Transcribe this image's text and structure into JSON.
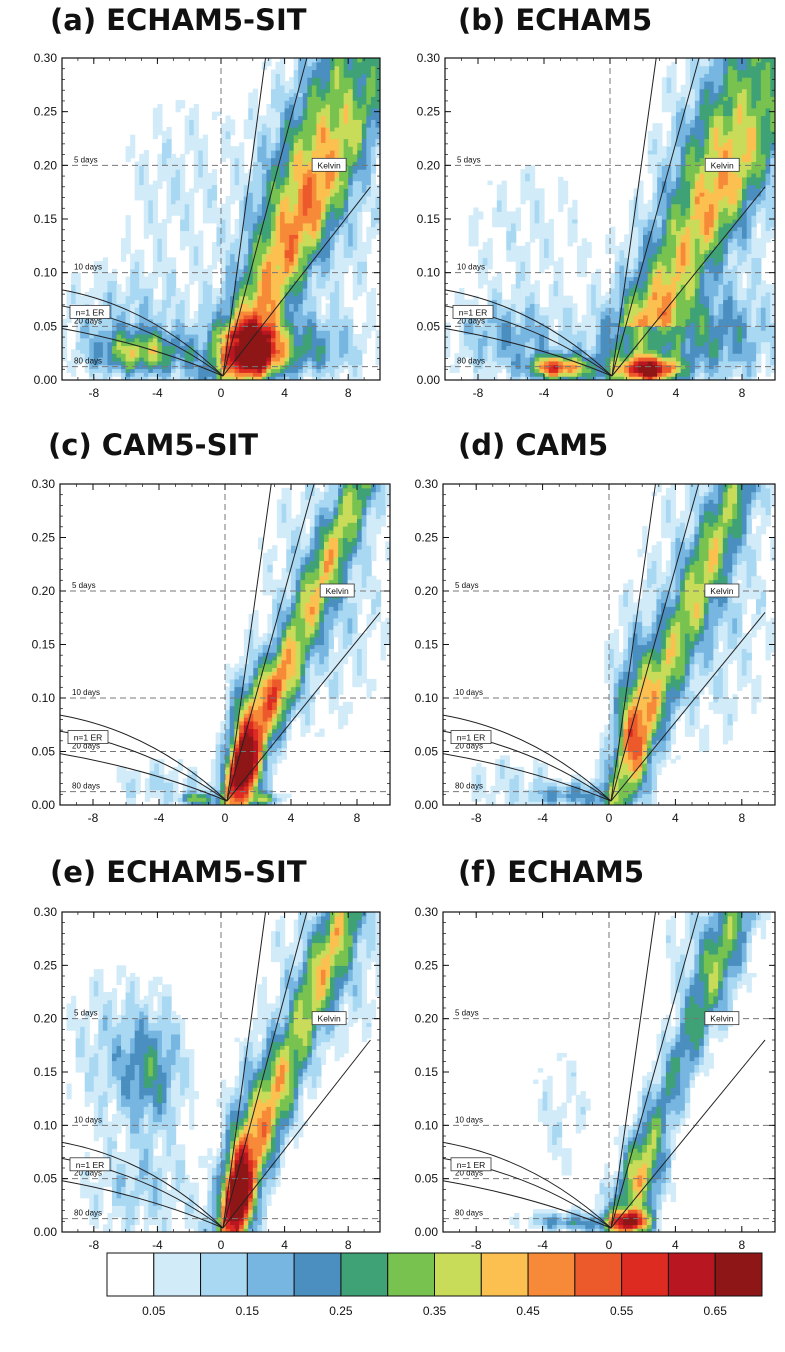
{
  "chart_data": {
    "panels": [
      {
        "id": "a",
        "title": "(a) ECHAM5-SIT",
        "pattern": "a"
      },
      {
        "id": "b",
        "title": "(b) ECHAM5",
        "pattern": "b"
      },
      {
        "id": "c",
        "title": "(c) CAM5-SIT",
        "pattern": "c"
      },
      {
        "id": "d",
        "title": "(d) CAM5",
        "pattern": "d"
      },
      {
        "id": "e",
        "title": "(e) ECHAM5-SIT",
        "pattern": "e"
      },
      {
        "id": "f",
        "title": "(f) ECHAM5",
        "pattern": "f"
      }
    ],
    "type": "heatmap",
    "x_ticks": [
      "-8",
      "-4",
      "0",
      "4",
      "8"
    ],
    "x_tick_values": [
      -8,
      -4,
      0,
      4,
      8
    ],
    "xlim": [
      -10,
      10
    ],
    "y_ticks": [
      "0.00",
      "0.05",
      "0.10",
      "0.15",
      "0.20",
      "0.25",
      "0.30"
    ],
    "y_tick_values": [
      0,
      0.05,
      0.1,
      0.15,
      0.2,
      0.25,
      0.3
    ],
    "ylim": [
      0,
      0.3
    ],
    "period_lines": [
      {
        "label": "5 days",
        "freq": 0.2
      },
      {
        "label": "10 days",
        "freq": 0.1
      },
      {
        "label": "20 days",
        "freq": 0.05
      },
      {
        "label": "80 days",
        "freq": 0.0125
      }
    ],
    "wave_labels": {
      "kelvin": "Kelvin",
      "er": "n=1 ER"
    },
    "colorbar": {
      "colors": [
        "#ffffff",
        "#d2ebf9",
        "#a9d8f3",
        "#78b6e2",
        "#4a8fc0",
        "#3fa276",
        "#78c250",
        "#c9dc5a",
        "#fbc04f",
        "#f68a38",
        "#ec5a2c",
        "#dd2b22",
        "#b81621",
        "#8e1616"
      ],
      "tick_labels": [
        "0.05",
        "0.15",
        "0.25",
        "0.35",
        "0.45",
        "0.55",
        "0.65"
      ]
    }
  }
}
